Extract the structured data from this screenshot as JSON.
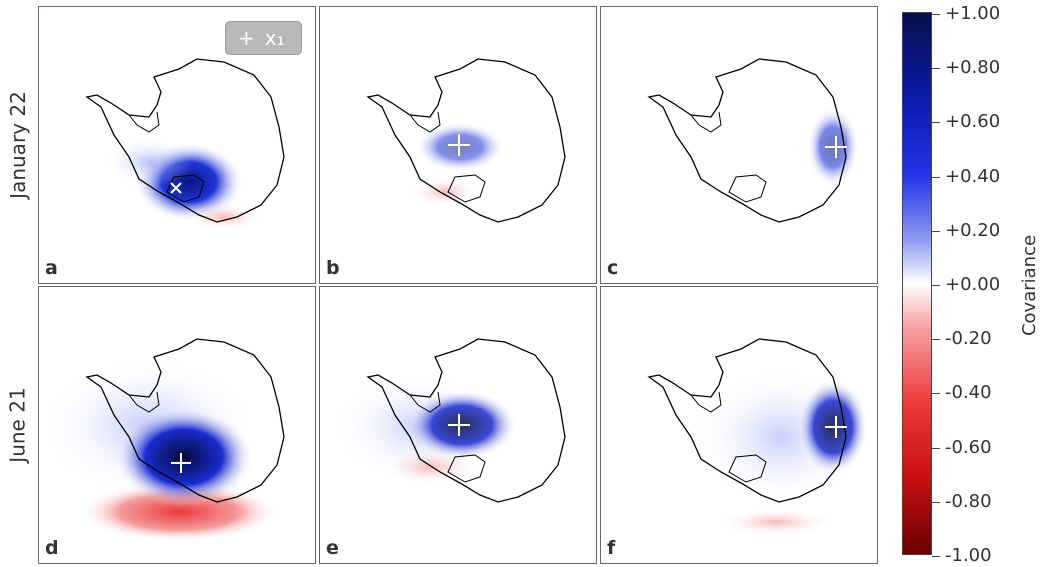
{
  "chart_data": {
    "type": "heatmap",
    "rows": [
      "January 22",
      "June 21"
    ],
    "panels": [
      {
        "letter": "a",
        "row": "January 22",
        "peak_covariance": 1.0
      },
      {
        "letter": "b",
        "row": "January 22",
        "peak_covariance": 0.45
      },
      {
        "letter": "c",
        "row": "January 22",
        "peak_covariance": 0.5
      },
      {
        "letter": "d",
        "row": "June 21",
        "peak_covariance": 1.0
      },
      {
        "letter": "e",
        "row": "June 21",
        "peak_covariance": 0.8
      },
      {
        "letter": "f",
        "row": "June 21",
        "peak_covariance": 0.75
      }
    ],
    "legend": {
      "label": "x₁",
      "marker": "+"
    },
    "colorbar": {
      "label": "Covariance",
      "range": [
        -1.0,
        1.0
      ],
      "ticks": [
        "+1.00",
        "+0.80",
        "+0.60",
        "+0.40",
        "+0.20",
        "+0.00",
        "-0.20",
        "-0.40",
        "-0.60",
        "-0.80",
        "-1.00"
      ],
      "colors": {
        "max": "#08104a",
        "mid": "#ffffff",
        "min": "#6b0000"
      }
    }
  }
}
